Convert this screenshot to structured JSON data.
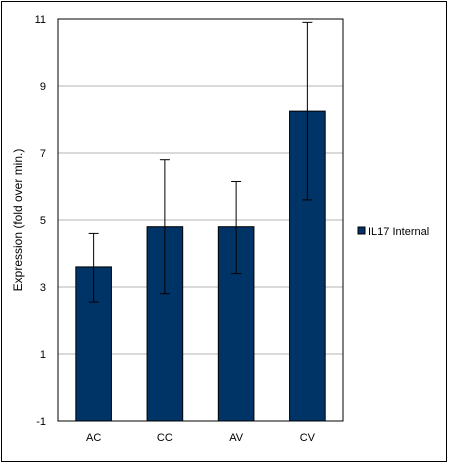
{
  "chart_data": {
    "type": "bar",
    "title": "",
    "xlabel": "",
    "ylabel": "Expression (fold over min.)",
    "categories": [
      "AC",
      "CC",
      "AV",
      "CV"
    ],
    "series": [
      {
        "name": "IL17 Internal",
        "values": [
          3.6,
          4.8,
          4.8,
          8.25
        ],
        "error_low": [
          2.55,
          2.8,
          3.4,
          5.6
        ],
        "error_high": [
          4.6,
          6.8,
          6.15,
          10.9
        ]
      }
    ],
    "ylim": [
      -1,
      11
    ],
    "yticks": [
      "-1",
      "1",
      "3",
      "5",
      "7",
      "9",
      "11"
    ],
    "grid": true,
    "legend_position": "right",
    "colors": {
      "bar": "#003366",
      "bar_edge": "#000000",
      "grid": "#b3b3b3"
    }
  }
}
